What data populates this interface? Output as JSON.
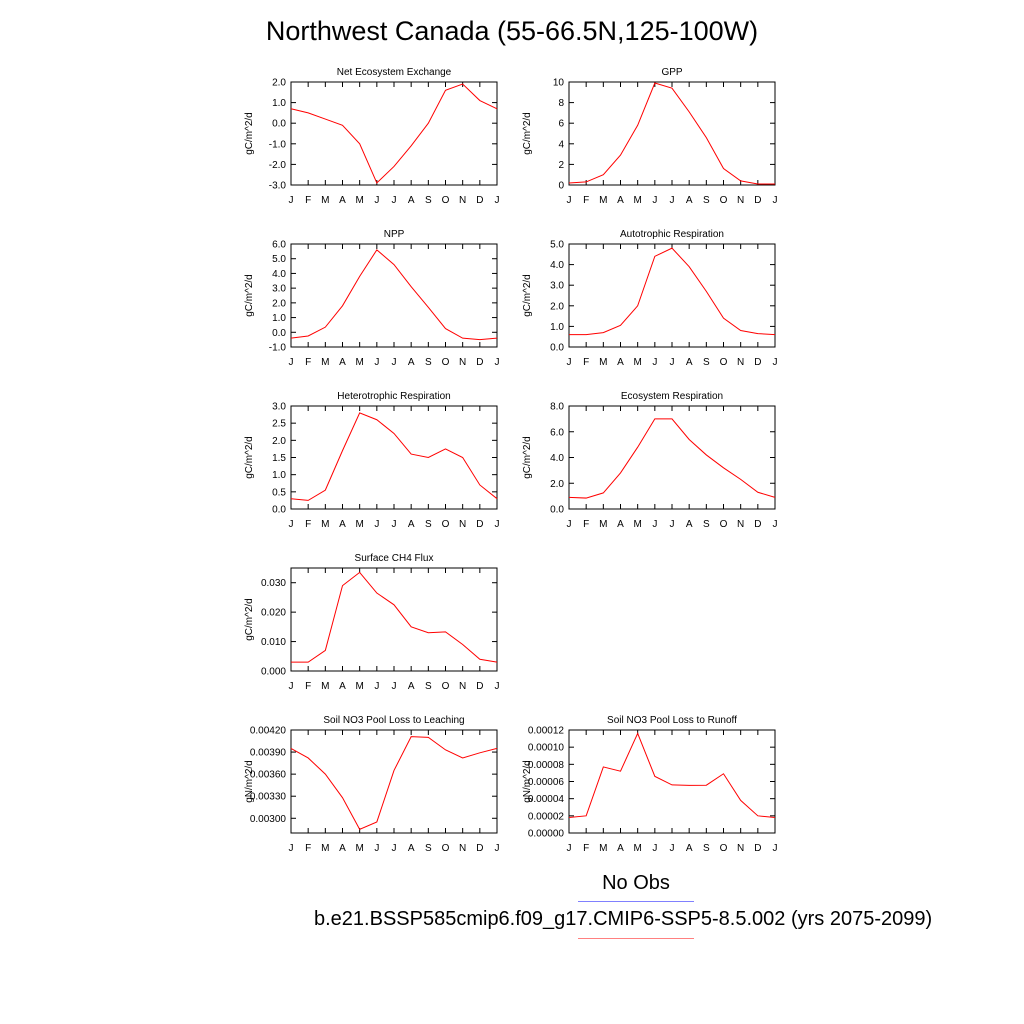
{
  "title": "Northwest Canada (55-66.5N,125-100W)",
  "colors": {
    "series": "#ff0000",
    "axis": "#000000",
    "legend_obs": "#8080ff",
    "legend_model": "#ff8080"
  },
  "legend": {
    "obs_label": "No Obs",
    "model_label": "b.e21.BSSP585cmip6.f09_g17.CMIP6-SSP5-8.5.002 (yrs 2075-2099)"
  },
  "chart_data": [
    {
      "type": "line",
      "title": "Net Ecosystem Exchange",
      "ylabel": "gC/m^2/d",
      "categories": [
        "J",
        "F",
        "M",
        "A",
        "M",
        "J",
        "J",
        "A",
        "S",
        "O",
        "N",
        "D",
        "J"
      ],
      "ylim": [
        -3.0,
        2.0
      ],
      "yticks": [
        -3.0,
        -2.0,
        -1.0,
        0.0,
        1.0,
        2.0
      ],
      "ytick_labels": [
        "-3.0",
        "-2.0",
        "-1.0",
        "0.0",
        "1.0",
        "2.0"
      ],
      "series": [
        {
          "values": [
            0.7,
            0.5,
            0.2,
            -0.1,
            -1.0,
            -2.9,
            -2.1,
            -1.1,
            0.0,
            1.6,
            1.9,
            1.1,
            0.7
          ]
        }
      ]
    },
    {
      "type": "line",
      "title": "GPP",
      "ylabel": "gC/m^2/d",
      "categories": [
        "J",
        "F",
        "M",
        "A",
        "M",
        "J",
        "J",
        "A",
        "S",
        "O",
        "N",
        "D",
        "J"
      ],
      "ylim": [
        0,
        10
      ],
      "yticks": [
        0,
        2,
        4,
        6,
        8,
        10
      ],
      "ytick_labels": [
        "0",
        "2",
        "4",
        "6",
        "8",
        "10"
      ],
      "series": [
        {
          "values": [
            0.2,
            0.3,
            1.0,
            2.9,
            5.8,
            9.9,
            9.4,
            7.1,
            4.6,
            1.6,
            0.4,
            0.1,
            0.1
          ]
        }
      ]
    },
    {
      "type": "line",
      "title": "NPP",
      "ylabel": "gC/m^2/d",
      "categories": [
        "J",
        "F",
        "M",
        "A",
        "M",
        "J",
        "J",
        "A",
        "S",
        "O",
        "N",
        "D",
        "J"
      ],
      "ylim": [
        -1.0,
        6.0
      ],
      "yticks": [
        -1.0,
        0.0,
        1.0,
        2.0,
        3.0,
        4.0,
        5.0,
        6.0
      ],
      "ytick_labels": [
        "-1.0",
        "0.0",
        "1.0",
        "2.0",
        "3.0",
        "4.0",
        "5.0",
        "6.0"
      ],
      "series": [
        {
          "values": [
            -0.4,
            -0.25,
            0.35,
            1.8,
            3.8,
            5.6,
            4.6,
            3.1,
            1.7,
            0.25,
            -0.4,
            -0.5,
            -0.4
          ]
        }
      ]
    },
    {
      "type": "line",
      "title": "Autotrophic Respiration",
      "ylabel": "gC/m^2/d",
      "categories": [
        "J",
        "F",
        "M",
        "A",
        "M",
        "J",
        "J",
        "A",
        "S",
        "O",
        "N",
        "D",
        "J"
      ],
      "ylim": [
        0.0,
        5.0
      ],
      "yticks": [
        0.0,
        1.0,
        2.0,
        3.0,
        4.0,
        5.0
      ],
      "ytick_labels": [
        "0.0",
        "1.0",
        "2.0",
        "3.0",
        "4.0",
        "5.0"
      ],
      "series": [
        {
          "values": [
            0.6,
            0.6,
            0.7,
            1.05,
            2.0,
            4.4,
            4.8,
            3.9,
            2.7,
            1.4,
            0.8,
            0.65,
            0.6
          ]
        }
      ]
    },
    {
      "type": "line",
      "title": "Heterotrophic Respiration",
      "ylabel": "gC/m^2/d",
      "categories": [
        "J",
        "F",
        "M",
        "A",
        "M",
        "J",
        "J",
        "A",
        "S",
        "O",
        "N",
        "D",
        "J"
      ],
      "ylim": [
        0.0,
        3.0
      ],
      "yticks": [
        0.0,
        0.5,
        1.0,
        1.5,
        2.0,
        2.5,
        3.0
      ],
      "ytick_labels": [
        "0.0",
        "0.5",
        "1.0",
        "1.5",
        "2.0",
        "2.5",
        "3.0"
      ],
      "series": [
        {
          "values": [
            0.3,
            0.25,
            0.55,
            1.7,
            2.8,
            2.6,
            2.2,
            1.6,
            1.5,
            1.75,
            1.5,
            0.7,
            0.3
          ]
        }
      ]
    },
    {
      "type": "line",
      "title": "Ecosystem Respiration",
      "ylabel": "gC/m^2/d",
      "categories": [
        "J",
        "F",
        "M",
        "A",
        "M",
        "J",
        "J",
        "A",
        "S",
        "O",
        "N",
        "D",
        "J"
      ],
      "ylim": [
        0.0,
        8.0
      ],
      "yticks": [
        0.0,
        2.0,
        4.0,
        6.0,
        8.0
      ],
      "ytick_labels": [
        "0.0",
        "2.0",
        "4.0",
        "6.0",
        "8.0"
      ],
      "series": [
        {
          "values": [
            0.9,
            0.85,
            1.25,
            2.8,
            4.8,
            7.0,
            7.0,
            5.4,
            4.2,
            3.2,
            2.3,
            1.3,
            0.9
          ]
        }
      ]
    },
    {
      "type": "line",
      "title": "Surface CH4 Flux",
      "ylabel": "gC/m^2/d",
      "categories": [
        "J",
        "F",
        "M",
        "A",
        "M",
        "J",
        "J",
        "A",
        "S",
        "O",
        "N",
        "D",
        "J"
      ],
      "ylim": [
        0.0,
        0.035
      ],
      "yticks": [
        0.0,
        0.01,
        0.02,
        0.03
      ],
      "ytick_labels": [
        "0.000",
        "0.010",
        "0.020",
        "0.030"
      ],
      "series": [
        {
          "values": [
            0.003,
            0.003,
            0.007,
            0.029,
            0.0335,
            0.0265,
            0.0225,
            0.015,
            0.013,
            0.0133,
            0.009,
            0.004,
            0.003
          ]
        }
      ]
    },
    {
      "type": "line",
      "title": "Soil NO3 Pool Loss to Leaching",
      "ylabel": "gN/m^2/d",
      "categories": [
        "J",
        "F",
        "M",
        "A",
        "M",
        "J",
        "J",
        "A",
        "S",
        "O",
        "N",
        "D",
        "J"
      ],
      "ylim": [
        0.0028,
        0.0042
      ],
      "yticks": [
        0.003,
        0.0033,
        0.0036,
        0.0039,
        0.0042
      ],
      "ytick_labels": [
        "0.00300",
        "0.00330",
        "0.00360",
        "0.00390",
        "0.00420"
      ],
      "series": [
        {
          "values": [
            0.00395,
            0.00382,
            0.0036,
            0.00328,
            0.00285,
            0.00295,
            0.00365,
            0.00411,
            0.0041,
            0.00393,
            0.00382,
            0.00389,
            0.00395
          ]
        }
      ]
    },
    {
      "type": "line",
      "title": "Soil NO3 Pool Loss to Runoff",
      "ylabel": "gN/m^2/d",
      "categories": [
        "J",
        "F",
        "M",
        "A",
        "M",
        "J",
        "J",
        "A",
        "S",
        "O",
        "N",
        "D",
        "J"
      ],
      "ylim": [
        0.0,
        0.00012
      ],
      "yticks": [
        0.0,
        2e-05,
        4e-05,
        6e-05,
        8e-05,
        0.0001,
        0.00012
      ],
      "ytick_labels": [
        "0.00000",
        "0.00002",
        "0.00004",
        "0.00006",
        "0.00008",
        "0.00010",
        "0.00012"
      ],
      "series": [
        {
          "values": [
            1.8e-05,
            2e-05,
            7.7e-05,
            7.2e-05,
            0.000116,
            6.6e-05,
            5.6e-05,
            5.55e-05,
            5.57e-05,
            6.9e-05,
            3.8e-05,
            2e-05,
            1.8e-05
          ]
        }
      ]
    }
  ]
}
